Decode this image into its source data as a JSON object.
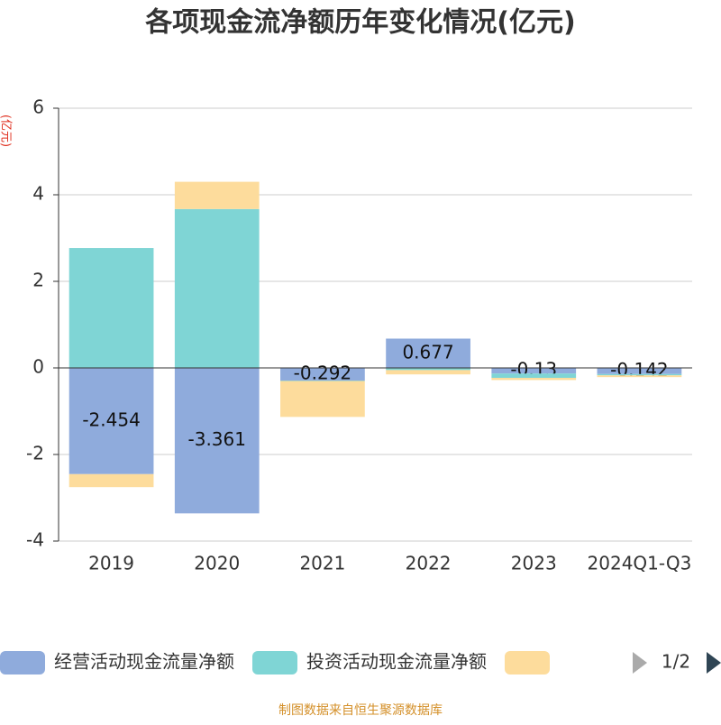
{
  "chart_data": {
    "type": "stacked_bar",
    "title": "各项现金流净额历年变化情况(亿元)",
    "y_label": "(亿元)",
    "categories": [
      "2019",
      "2020",
      "2021",
      "2022",
      "2023",
      "2024Q1-Q3"
    ],
    "series": [
      {
        "name": "经营活动现金流量净额",
        "color": "#8fabdc",
        "values": [
          -2.454,
          -3.361,
          -0.292,
          0.677,
          -0.13,
          -0.142
        ],
        "labels": true
      },
      {
        "name": "投资活动现金流量净额",
        "color": "#7fd5d5",
        "values": [
          2.77,
          3.67,
          -0.01,
          -0.05,
          -0.1,
          -0.03
        ]
      },
      {
        "color": "#fddc9c",
        "values": [
          -0.3,
          0.63,
          -0.83,
          -0.1,
          -0.05,
          -0.04
        ]
      }
    ],
    "ylim": [
      -4,
      6
    ],
    "yticks": [
      -4,
      -2,
      0,
      2,
      4,
      6
    ],
    "grid": true,
    "legend_page": "1/2",
    "source": "制图数据来自恒生聚源数据库"
  }
}
